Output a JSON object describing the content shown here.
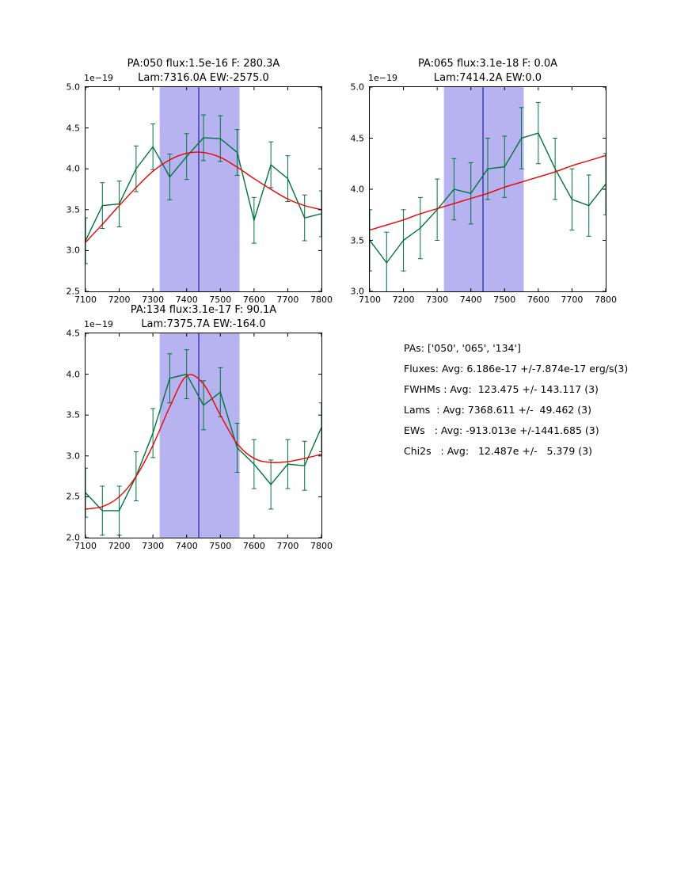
{
  "figure": {
    "background": "#ffffff"
  },
  "colors": {
    "data_line": "#00733d",
    "fit_line": "#ee0000",
    "band_fill": "#b6b3f0",
    "vline": "#00008b",
    "axis": "#000000"
  },
  "stats": {
    "lines": [
      "PAs: ['050', '065', '134']",
      "Fluxes: Avg: 6.186e-17 +/-7.874e-17 erg/s(3)",
      "FWHMs : Avg:  123.475 +/- 143.117 (3)",
      "Lams  : Avg: 7368.611 +/-  49.462 (3)",
      "EWs   : Avg: -913.013e +/-1441.685 (3)",
      "Chi2s   : Avg:   12.487e +/-   5.379 (3)"
    ]
  },
  "chart_data": [
    {
      "type": "line",
      "title_line1": "PA:050 flux:1.5e-16 F: 280.3A",
      "title_line2": "Lam:7316.0A EW:-2575.0",
      "offset_label": "1e−19",
      "xlim": [
        7100,
        7800
      ],
      "ylim": [
        2.5,
        5.0
      ],
      "xticks": [
        7100,
        7200,
        7300,
        7400,
        7500,
        7600,
        7700,
        7800
      ],
      "yticks": [
        2.5,
        3.0,
        3.5,
        4.0,
        4.5,
        5.0
      ],
      "band_x": [
        7320,
        7557
      ],
      "vline_x": 7436,
      "grid": false,
      "x": [
        7100,
        7150,
        7200,
        7250,
        7300,
        7350,
        7400,
        7450,
        7500,
        7550,
        7600,
        7650,
        7700,
        7750,
        7800
      ],
      "series": [
        {
          "name": "spectrum",
          "color_key": "data_line",
          "yerr": 0.28,
          "y": [
            3.12,
            3.55,
            3.57,
            4.0,
            4.27,
            3.9,
            4.15,
            4.38,
            4.37,
            4.2,
            3.37,
            4.05,
            3.88,
            3.4,
            3.45
          ]
        },
        {
          "name": "gaussian-fit",
          "color_key": "fit_line",
          "smooth": true,
          "y": [
            3.1,
            3.32,
            3.55,
            3.77,
            3.97,
            4.11,
            4.19,
            4.2,
            4.14,
            4.02,
            3.88,
            3.75,
            3.63,
            3.55,
            3.5
          ]
        }
      ]
    },
    {
      "type": "line",
      "title_line1": "PA:065 flux:3.1e-18 F: 0.0A",
      "title_line2": "Lam:7414.2A EW:0.0",
      "offset_label": "1e−19",
      "xlim": [
        7100,
        7800
      ],
      "ylim": [
        3.0,
        5.0
      ],
      "xticks": [
        7100,
        7200,
        7300,
        7400,
        7500,
        7600,
        7700,
        7800
      ],
      "yticks": [
        3.0,
        3.5,
        4.0,
        4.5,
        5.0
      ],
      "band_x": [
        7320,
        7557
      ],
      "vline_x": 7436,
      "grid": false,
      "x": [
        7100,
        7150,
        7200,
        7250,
        7300,
        7350,
        7400,
        7450,
        7500,
        7550,
        7600,
        7650,
        7700,
        7750,
        7800
      ],
      "series": [
        {
          "name": "spectrum",
          "color_key": "data_line",
          "yerr": 0.3,
          "y": [
            3.5,
            3.28,
            3.5,
            3.62,
            3.8,
            4.0,
            3.96,
            4.2,
            4.22,
            4.5,
            4.55,
            4.2,
            3.9,
            3.84,
            4.05
          ]
        },
        {
          "name": "linear-fit",
          "color_key": "fit_line",
          "smooth": true,
          "y": [
            3.6,
            3.65,
            3.7,
            3.76,
            3.81,
            3.86,
            3.91,
            3.96,
            4.02,
            4.07,
            4.12,
            4.17,
            4.23,
            4.28,
            4.33
          ]
        }
      ]
    },
    {
      "type": "line",
      "title_line1": "PA:134 flux:3.1e-17 F: 90.1A",
      "title_line2": "Lam:7375.7A EW:-164.0",
      "offset_label": "1e−19",
      "xlim": [
        7100,
        7800
      ],
      "ylim": [
        2.0,
        4.5
      ],
      "xticks": [
        7100,
        7200,
        7300,
        7400,
        7500,
        7600,
        7700,
        7800
      ],
      "yticks": [
        2.0,
        2.5,
        3.0,
        3.5,
        4.0,
        4.5
      ],
      "band_x": [
        7320,
        7557
      ],
      "vline_x": 7436,
      "grid": false,
      "x": [
        7100,
        7150,
        7200,
        7250,
        7300,
        7350,
        7400,
        7450,
        7500,
        7550,
        7600,
        7650,
        7700,
        7750,
        7800
      ],
      "series": [
        {
          "name": "spectrum",
          "color_key": "data_line",
          "yerr": 0.3,
          "y": [
            2.55,
            2.33,
            2.33,
            2.75,
            3.28,
            3.95,
            4.0,
            3.62,
            3.78,
            3.1,
            2.9,
            2.65,
            2.9,
            2.88,
            3.35
          ]
        },
        {
          "name": "gaussian-fit",
          "color_key": "fit_line",
          "smooth": true,
          "y": [
            2.35,
            2.38,
            2.5,
            2.75,
            3.13,
            3.6,
            3.98,
            3.88,
            3.5,
            3.15,
            2.97,
            2.92,
            2.93,
            2.97,
            3.02
          ]
        }
      ]
    }
  ]
}
